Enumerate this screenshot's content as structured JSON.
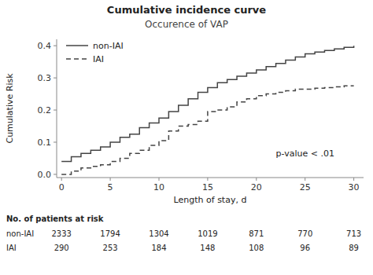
{
  "chart_data": {
    "type": "step",
    "title": "Cumulative incidence curve",
    "subtitle": "Occurence of VAP",
    "x_label": "Length of stay, d",
    "y_label": "Cumulative Risk",
    "xlim": [
      -0.5,
      31
    ],
    "ylim": [
      -0.01,
      0.42
    ],
    "xticks": [
      0,
      5,
      10,
      15,
      20,
      25,
      30
    ],
    "yticks": [
      {
        "value": 0.0,
        "label": "0.0"
      },
      0.1,
      0.2,
      0.3,
      0.4
    ],
    "grid": false,
    "legend": "top-left",
    "x": [
      0,
      0.5,
      1,
      1.5,
      2,
      2.5,
      3,
      3.5,
      4,
      4.5,
      5,
      5.5,
      6,
      6.5,
      7,
      7.5,
      8,
      8.5,
      9,
      9.5,
      10,
      10.5,
      11,
      11.5,
      12,
      12.5,
      13,
      13.5,
      14,
      14.5,
      15,
      15.5,
      16,
      16.5,
      17,
      17.5,
      18,
      18.5,
      19,
      19.5,
      20,
      20.5,
      21,
      21.5,
      22,
      22.5,
      23,
      23.5,
      24,
      24.5,
      25,
      25.5,
      26,
      26.5,
      27,
      27.5,
      28,
      28.5,
      29,
      29.5,
      30
    ],
    "series": [
      {
        "name": "non-IAI",
        "color": "#444444",
        "line_style": "solid",
        "values": [
          0.04,
          0.04,
          0.055,
          0.055,
          0.065,
          0.065,
          0.075,
          0.075,
          0.085,
          0.085,
          0.1,
          0.1,
          0.115,
          0.115,
          0.125,
          0.125,
          0.145,
          0.145,
          0.16,
          0.16,
          0.175,
          0.175,
          0.195,
          0.195,
          0.215,
          0.215,
          0.235,
          0.235,
          0.255,
          0.255,
          0.27,
          0.27,
          0.285,
          0.285,
          0.295,
          0.295,
          0.305,
          0.305,
          0.315,
          0.315,
          0.325,
          0.325,
          0.335,
          0.335,
          0.345,
          0.345,
          0.355,
          0.355,
          0.365,
          0.365,
          0.375,
          0.375,
          0.38,
          0.38,
          0.385,
          0.385,
          0.39,
          0.39,
          0.395,
          0.395,
          0.4
        ]
      },
      {
        "name": "IAI",
        "color": "#444444",
        "line_style": "dashed",
        "values": [
          0.0,
          0.0,
          0.01,
          0.01,
          0.02,
          0.02,
          0.025,
          0.025,
          0.03,
          0.03,
          0.04,
          0.04,
          0.05,
          0.05,
          0.065,
          0.065,
          0.075,
          0.075,
          0.09,
          0.09,
          0.105,
          0.105,
          0.135,
          0.135,
          0.15,
          0.15,
          0.155,
          0.155,
          0.165,
          0.165,
          0.195,
          0.195,
          0.2,
          0.2,
          0.21,
          0.21,
          0.225,
          0.225,
          0.235,
          0.235,
          0.245,
          0.245,
          0.25,
          0.25,
          0.255,
          0.255,
          0.26,
          0.26,
          0.265,
          0.265,
          0.265,
          0.265,
          0.268,
          0.268,
          0.27,
          0.27,
          0.272,
          0.272,
          0.275,
          0.275,
          0.275
        ]
      }
    ],
    "annotations": [
      {
        "text": "p-value < .01",
        "x": 22,
        "y": 0.065
      }
    ],
    "at_risk": {
      "title": "No. of patients at risk",
      "times": [
        0,
        5,
        10,
        15,
        20,
        25,
        30
      ],
      "rows": [
        {
          "name": "non-IAI",
          "values": [
            2333,
            1794,
            1304,
            1019,
            871,
            770,
            713
          ]
        },
        {
          "name": "IAI",
          "values": [
            290,
            253,
            184,
            148,
            108,
            96,
            89
          ]
        }
      ]
    }
  }
}
